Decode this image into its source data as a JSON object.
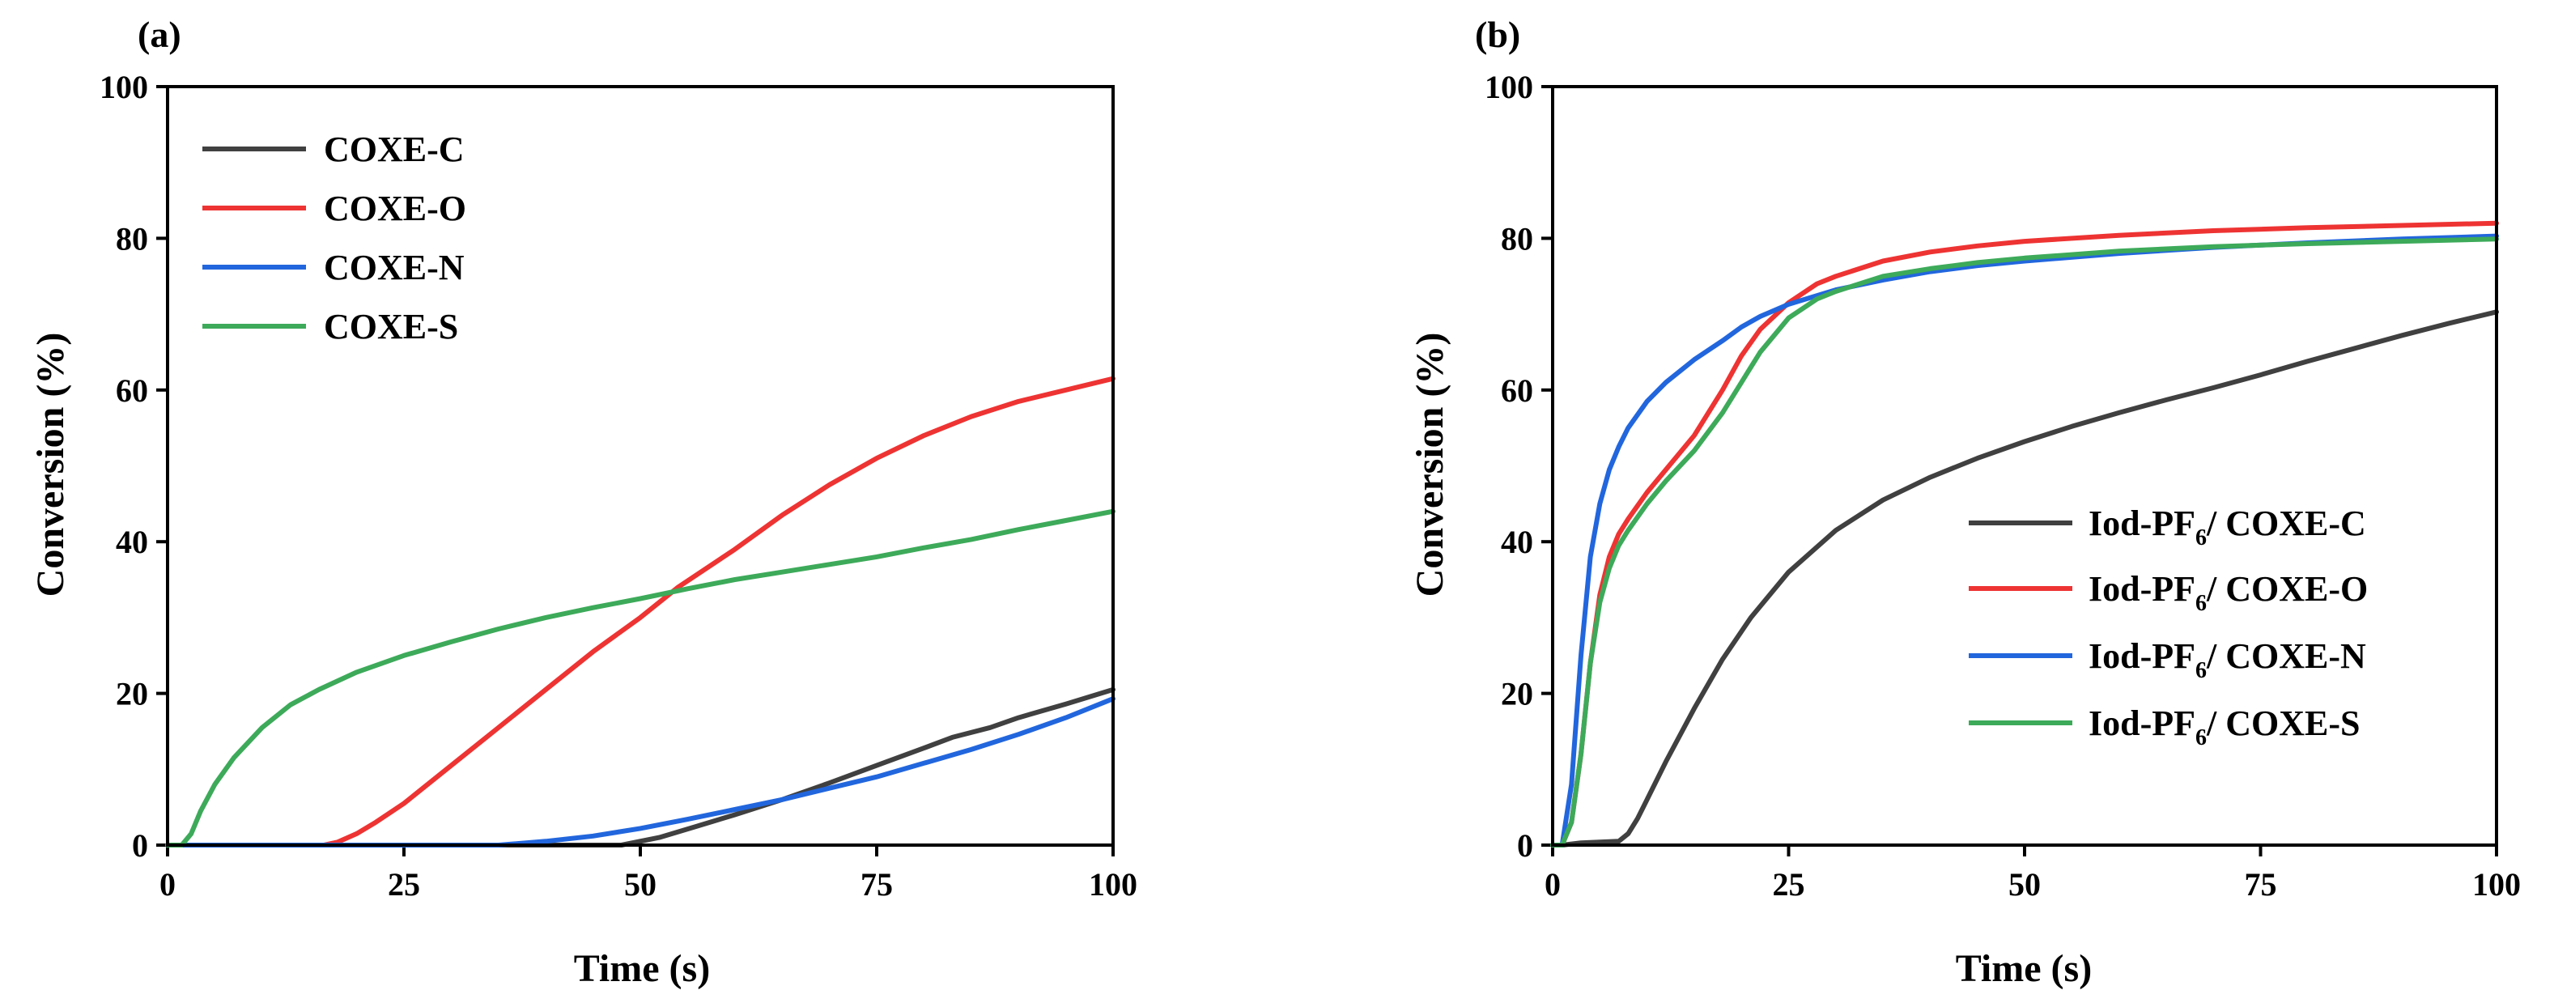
{
  "chart_data": [
    {
      "type": "line",
      "panel_label": "(a)",
      "xlabel": "Time (s)",
      "ylabel": "Conversion (%)",
      "xlim": [
        0,
        100
      ],
      "ylim": [
        0,
        100
      ],
      "xticks": [
        0,
        25,
        50,
        75,
        100
      ],
      "yticks": [
        0,
        20,
        40,
        60,
        80,
        100
      ],
      "legend_position": "top-left",
      "series": [
        {
          "name": "COXE-C",
          "color": "#404040",
          "x": [
            0,
            48,
            52,
            56,
            60,
            65,
            70,
            75,
            80,
            83,
            87,
            90,
            95,
            100
          ],
          "y": [
            0,
            0,
            1.0,
            2.5,
            4.0,
            6.0,
            8.2,
            10.5,
            12.8,
            14.2,
            15.5,
            16.8,
            18.6,
            20.5
          ]
        },
        {
          "name": "COXE-O",
          "color": "#EE3333",
          "x": [
            0,
            16.5,
            18,
            20,
            22,
            25,
            30,
            35,
            40,
            45,
            50,
            54,
            60,
            65,
            70,
            75,
            80,
            85,
            90,
            95,
            100
          ],
          "y": [
            0,
            0,
            0.4,
            1.5,
            3.0,
            5.5,
            10.5,
            15.5,
            20.5,
            25.5,
            30.0,
            34.0,
            39.0,
            43.5,
            47.5,
            51.0,
            54.0,
            56.5,
            58.5,
            60.0,
            61.5
          ]
        },
        {
          "name": "COXE-N",
          "color": "#2266DD",
          "x": [
            0,
            35,
            40,
            45,
            50,
            55,
            60,
            65,
            70,
            75,
            80,
            85,
            90,
            95,
            100
          ],
          "y": [
            0,
            0,
            0.5,
            1.2,
            2.2,
            3.4,
            4.7,
            6.0,
            7.5,
            9.0,
            10.8,
            12.6,
            14.6,
            16.8,
            19.3
          ]
        },
        {
          "name": "COXE-S",
          "color": "#3DAA5A",
          "x": [
            0,
            1.5,
            2.5,
            3.5,
            5,
            7,
            10,
            13,
            16,
            20,
            25,
            30,
            35,
            40,
            45,
            50,
            55,
            60,
            65,
            70,
            75,
            80,
            85,
            90,
            95,
            100
          ],
          "y": [
            0,
            0,
            1.5,
            4.5,
            8.0,
            11.5,
            15.5,
            18.5,
            20.5,
            22.8,
            25.0,
            26.8,
            28.5,
            30.0,
            31.3,
            32.5,
            33.8,
            35.0,
            36.0,
            37.0,
            38.0,
            39.2,
            40.3,
            41.6,
            42.8,
            44.0
          ]
        }
      ]
    },
    {
      "type": "line",
      "panel_label": "(b)",
      "xlabel": "Time (s)",
      "ylabel": "Conversion (%)",
      "xlim": [
        0,
        100
      ],
      "ylim": [
        0,
        100
      ],
      "xticks": [
        0,
        25,
        50,
        75,
        100
      ],
      "yticks": [
        0,
        20,
        40,
        60,
        80,
        100
      ],
      "legend_position": "bottom-right",
      "series": [
        {
          "name": "Iod-PF6/ COXE-C",
          "name_main": "Iod-PF",
          "name_sub": "6",
          "name_rest": "/ COXE-C",
          "color": "#404040",
          "x": [
            0,
            1,
            3,
            5,
            7,
            8,
            9,
            10,
            12,
            15,
            18,
            21,
            25,
            30,
            35,
            40,
            45,
            50,
            55,
            60,
            65,
            70,
            75,
            80,
            85,
            90,
            95,
            100
          ],
          "y": [
            0,
            0,
            0.3,
            0.4,
            0.5,
            1.5,
            3.5,
            6.0,
            11.0,
            18.0,
            24.5,
            30.0,
            36.0,
            41.5,
            45.5,
            48.5,
            51.0,
            53.2,
            55.2,
            57.0,
            58.7,
            60.3,
            62.0,
            63.8,
            65.5,
            67.2,
            68.8,
            70.3
          ]
        },
        {
          "name": "Iod-PF6/ COXE-O",
          "name_main": "Iod-PF",
          "name_sub": "6",
          "name_rest": "/ COXE-O",
          "color": "#EE3333",
          "x": [
            0,
            1,
            2,
            3,
            4,
            5,
            6,
            7,
            8,
            10,
            12,
            15,
            18,
            20,
            22,
            25,
            28,
            30,
            35,
            40,
            45,
            50,
            60,
            70,
            80,
            90,
            100
          ],
          "y": [
            0,
            0,
            3,
            12,
            24,
            33,
            38,
            41,
            43,
            46.5,
            49.5,
            54,
            60,
            64.5,
            68,
            71.5,
            74,
            75,
            77,
            78.2,
            79,
            79.6,
            80.4,
            81,
            81.4,
            81.7,
            82
          ]
        },
        {
          "name": "Iod-PF6/ COXE-N",
          "name_main": "Iod-PF",
          "name_sub": "6",
          "name_rest": "/ COXE-N",
          "color": "#2266DD",
          "x": [
            0,
            1,
            2,
            3,
            4,
            5,
            6,
            7,
            8,
            10,
            12,
            15,
            18,
            20,
            22,
            25,
            30,
            35,
            40,
            45,
            50,
            60,
            70,
            80,
            90,
            100
          ],
          "y": [
            0,
            0,
            8,
            25,
            38,
            45,
            49.5,
            52.5,
            55,
            58.5,
            61,
            64,
            66.5,
            68.3,
            69.7,
            71.3,
            73.2,
            74.5,
            75.6,
            76.4,
            77,
            78,
            78.8,
            79.4,
            79.9,
            80.3
          ]
        },
        {
          "name": "Iod-PF6/ COXE-S",
          "name_main": "Iod-PF",
          "name_sub": "6",
          "name_rest": "/ COXE-S",
          "color": "#3DAA5A",
          "x": [
            0,
            1,
            2,
            3,
            4,
            5,
            6,
            7,
            8,
            10,
            12,
            15,
            18,
            20,
            22,
            25,
            28,
            30,
            35,
            40,
            45,
            50,
            60,
            70,
            80,
            90,
            100
          ],
          "y": [
            0,
            0,
            3,
            12,
            24,
            32,
            36.5,
            39.5,
            41.5,
            45,
            48,
            52,
            57,
            61,
            65,
            69.5,
            72,
            73,
            75,
            76,
            76.8,
            77.4,
            78.3,
            78.9,
            79.3,
            79.6,
            79.9
          ]
        }
      ]
    }
  ]
}
